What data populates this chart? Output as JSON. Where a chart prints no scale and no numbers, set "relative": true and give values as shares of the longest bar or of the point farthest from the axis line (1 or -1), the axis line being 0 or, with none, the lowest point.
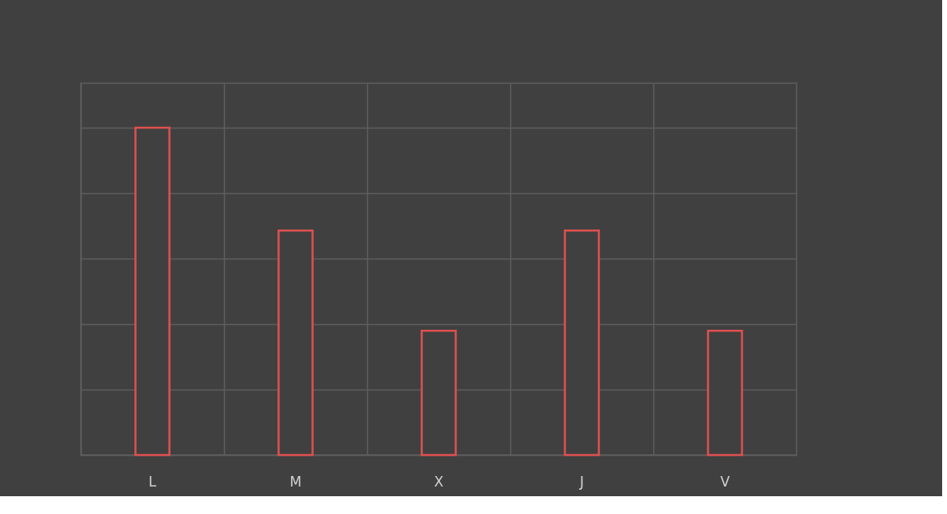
{
  "chart_data": {
    "type": "bar",
    "categories": [
      "L",
      "M",
      "X",
      "J",
      "V"
    ],
    "values": [
      1,
      0.686,
      0.38,
      0.686,
      0.38
    ],
    "color": "#e0504f",
    "relative": true,
    "grid": true
  }
}
